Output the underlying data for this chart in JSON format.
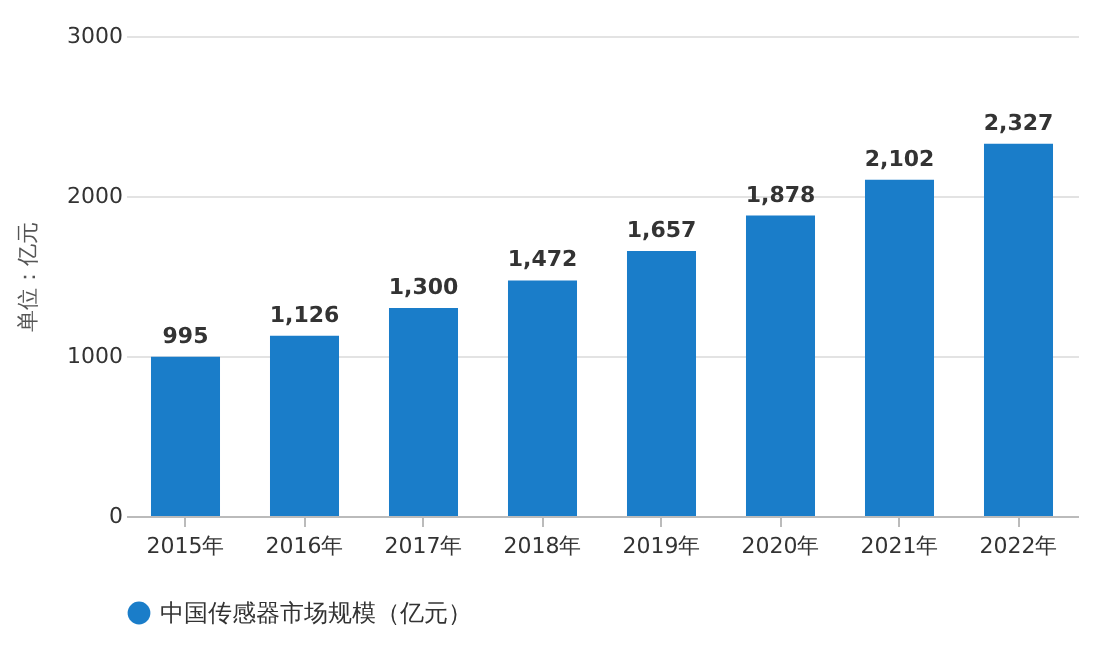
{
  "chart_data": {
    "type": "bar",
    "ylabel": "单位：亿元",
    "categories": [
      "2015年",
      "2016年",
      "2017年",
      "2018年",
      "2019年",
      "2020年",
      "2021年",
      "2022年"
    ],
    "series": [
      {
        "name": "中国传感器市场规模（亿元）",
        "color": "#1a7dc9",
        "values": [
          995,
          1126,
          1300,
          1472,
          1657,
          1878,
          2102,
          2327
        ],
        "value_labels": [
          "995",
          "1,126",
          "1,300",
          "1,472",
          "1,657",
          "1,878",
          "2,102",
          "2,327"
        ]
      }
    ],
    "ylim": [
      0,
      3000
    ],
    "yticks": [
      0,
      1000,
      2000,
      3000
    ],
    "grid": "y",
    "legend": "bottom"
  }
}
